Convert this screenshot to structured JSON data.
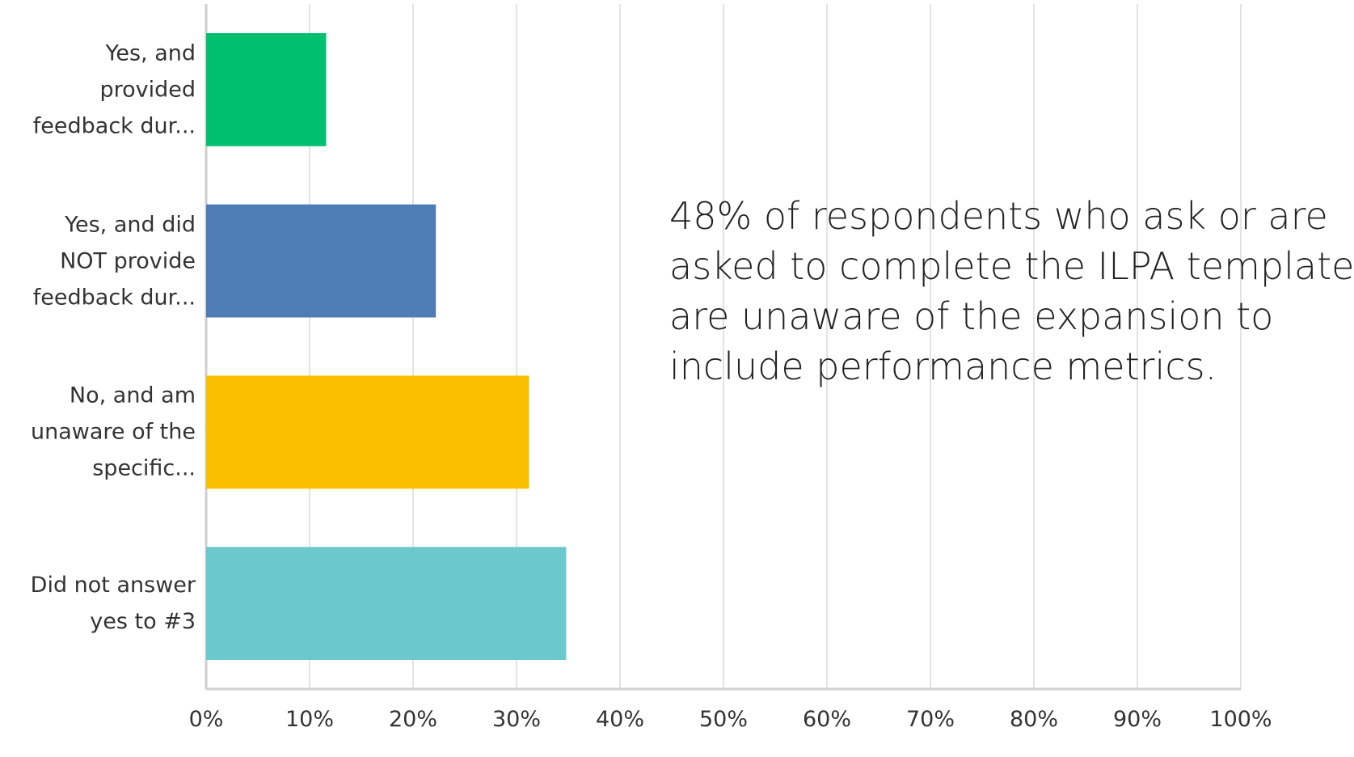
{
  "chart_data": {
    "type": "bar",
    "orientation": "horizontal",
    "categories": [
      "Yes, and\nprovided\nfeedback dur...",
      "Yes, and did\nNOT provide\nfeedback dur...",
      "No, and am\nunaware of the\nspecific...",
      "Did not answer\nyes to #3"
    ],
    "values": [
      11.6,
      22.2,
      31.2,
      34.8
    ],
    "colors": [
      "#00bf6f",
      "#507cb6",
      "#f9be00",
      "#6bc8cd"
    ],
    "xlim": [
      0,
      100
    ],
    "xticks": [
      {
        "value": 0,
        "label": "0%"
      },
      {
        "value": 10,
        "label": "10%"
      },
      {
        "value": 20,
        "label": "20%"
      },
      {
        "value": 30,
        "label": "30%"
      },
      {
        "value": 40,
        "label": "40%"
      },
      {
        "value": 50,
        "label": "50%"
      },
      {
        "value": 60,
        "label": "60%"
      },
      {
        "value": 70,
        "label": "70%"
      },
      {
        "value": 80,
        "label": "80%"
      },
      {
        "value": 90,
        "label": "90%"
      },
      {
        "value": 100,
        "label": "100%"
      }
    ],
    "grid": true,
    "annotation": "48% of respondents who ask or are\nasked to complete the ILPA template\nare unaware of the expansion to\ninclude performance metrics."
  }
}
